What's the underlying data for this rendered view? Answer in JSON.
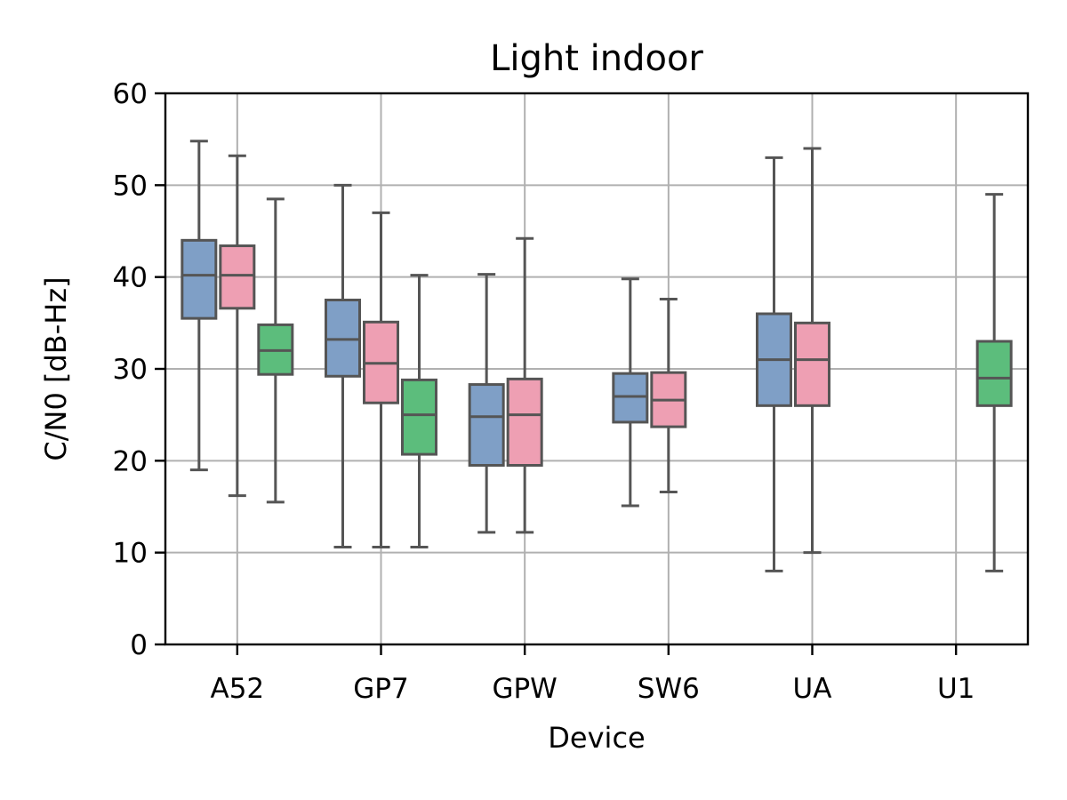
{
  "chart_data": {
    "type": "box",
    "title": "Light indoor",
    "xlabel": "Device",
    "ylabel": "C/N0 [dB-Hz]",
    "ylim": [
      0,
      60
    ],
    "yticks": [
      0,
      10,
      20,
      30,
      40,
      50,
      60
    ],
    "grid": true,
    "legend": "none",
    "categories": [
      "A52",
      "GP7",
      "GPW",
      "SW6",
      "UA",
      "U1"
    ],
    "series": [
      {
        "color": "#7f9fc6",
        "boxes": [
          {
            "category": "A52",
            "whislo": 19,
            "q1": 35.5,
            "median": 40.2,
            "q3": 44,
            "whishi": 54.8
          },
          {
            "category": "GP7",
            "whislo": 10.6,
            "q1": 29.2,
            "median": 33.2,
            "q3": 37.5,
            "whishi": 50
          },
          {
            "category": "GPW",
            "whislo": 12.2,
            "q1": 19.5,
            "median": 24.8,
            "q3": 28.3,
            "whishi": 40.3
          },
          {
            "category": "SW6",
            "whislo": 15.1,
            "q1": 24.2,
            "median": 27,
            "q3": 29.5,
            "whishi": 39.8
          },
          {
            "category": "UA",
            "whislo": 8,
            "q1": 26,
            "median": 31,
            "q3": 36,
            "whishi": 53
          }
        ]
      },
      {
        "color": "#ee9fb3",
        "boxes": [
          {
            "category": "A52",
            "whislo": 16.2,
            "q1": 36.6,
            "median": 40.2,
            "q3": 43.4,
            "whishi": 53.2
          },
          {
            "category": "GP7",
            "whislo": 10.6,
            "q1": 26.3,
            "median": 30.6,
            "q3": 35.1,
            "whishi": 47
          },
          {
            "category": "GPW",
            "whislo": 12.2,
            "q1": 19.5,
            "median": 25,
            "q3": 28.9,
            "whishi": 44.2
          },
          {
            "category": "SW6",
            "whislo": 16.6,
            "q1": 23.7,
            "median": 26.6,
            "q3": 29.6,
            "whishi": 37.6
          },
          {
            "category": "UA",
            "whislo": 10,
            "q1": 26,
            "median": 31,
            "q3": 35,
            "whishi": 54
          }
        ]
      },
      {
        "color": "#5cbd7c",
        "boxes": [
          {
            "category": "A52",
            "whislo": 15.5,
            "q1": 29.4,
            "median": 32,
            "q3": 34.8,
            "whishi": 48.5
          },
          {
            "category": "GP7",
            "whislo": 10.6,
            "q1": 20.7,
            "median": 25,
            "q3": 28.8,
            "whishi": 40.2
          },
          {
            "category": "U1",
            "whislo": 8,
            "q1": 26,
            "median": 29,
            "q3": 33,
            "whishi": 49
          }
        ]
      }
    ]
  }
}
